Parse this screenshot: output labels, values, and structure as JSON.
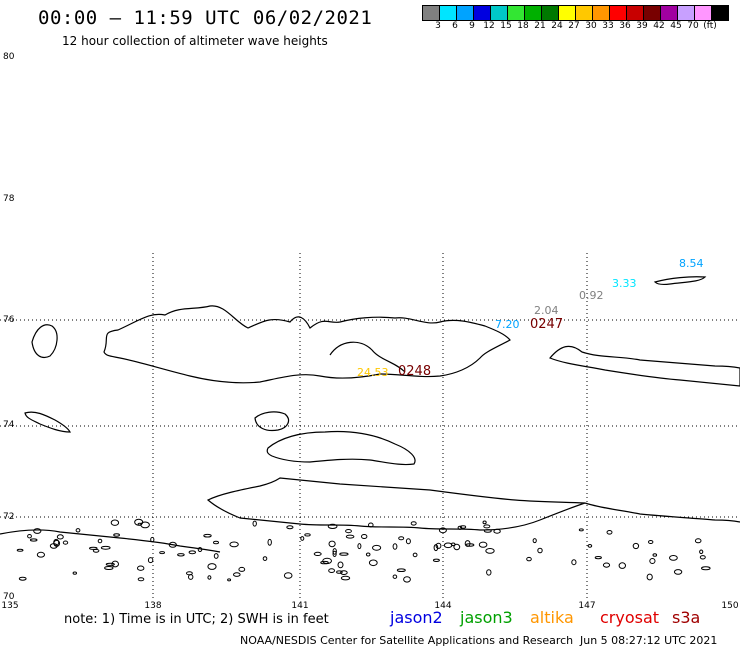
{
  "header": {
    "title": "00:00 – 11:59 UTC 06/02/2021",
    "subtitle": "12 hour collection of altimeter wave heights"
  },
  "scale": {
    "colors": [
      "#808080",
      "#00e5ff",
      "#00a3ff",
      "#0000e0",
      "#00c8c8",
      "#33e633",
      "#00b000",
      "#007800",
      "#ffff00",
      "#ffc800",
      "#ff9600",
      "#ff0000",
      "#c80000",
      "#780000",
      "#a000a0",
      "#c8a0ff",
      "#ff96ff",
      "#000000"
    ],
    "labels": [
      "3",
      "6",
      "9",
      "12",
      "15",
      "18",
      "21",
      "24",
      "27",
      "30",
      "33",
      "36",
      "39",
      "42",
      "45",
      "70",
      "(ft)"
    ]
  },
  "axes": {
    "y_ticks": [
      "80",
      "78",
      "76",
      "74",
      "72",
      "70"
    ],
    "x_ticks": [
      "135",
      "138",
      "141",
      "144",
      "147",
      "150"
    ]
  },
  "observations": [
    {
      "text": "8.54",
      "color": "#00a3ff"
    },
    {
      "text": "3.33",
      "color": "#00e5ff"
    },
    {
      "text": "0.92",
      "color": "#808080"
    },
    {
      "text": "2.04",
      "color": "#808080"
    },
    {
      "text": "7.20",
      "color": "#00a3ff"
    },
    {
      "text": "0247",
      "color": "#780000"
    },
    {
      "text": "24.53",
      "color": "#ffc800"
    },
    {
      "text": "0248",
      "color": "#780000"
    }
  ],
  "footer": {
    "note": "note:  1) Time is in UTC;  2) SWH is in feet",
    "legend": [
      {
        "text": "jason2",
        "color": "#0000e0"
      },
      {
        "text": "jason3",
        "color": "#00a000"
      },
      {
        "text": "altika",
        "color": "#ff9600"
      },
      {
        "text": "cryosat",
        "color": "#e00000"
      },
      {
        "text": "s3a",
        "color": "#a00000"
      }
    ],
    "credit": "NOAA/NESDIS Center for Satellite Applications and Research",
    "timestamp": "Jun  5 08:27:12 UTC 2021"
  }
}
